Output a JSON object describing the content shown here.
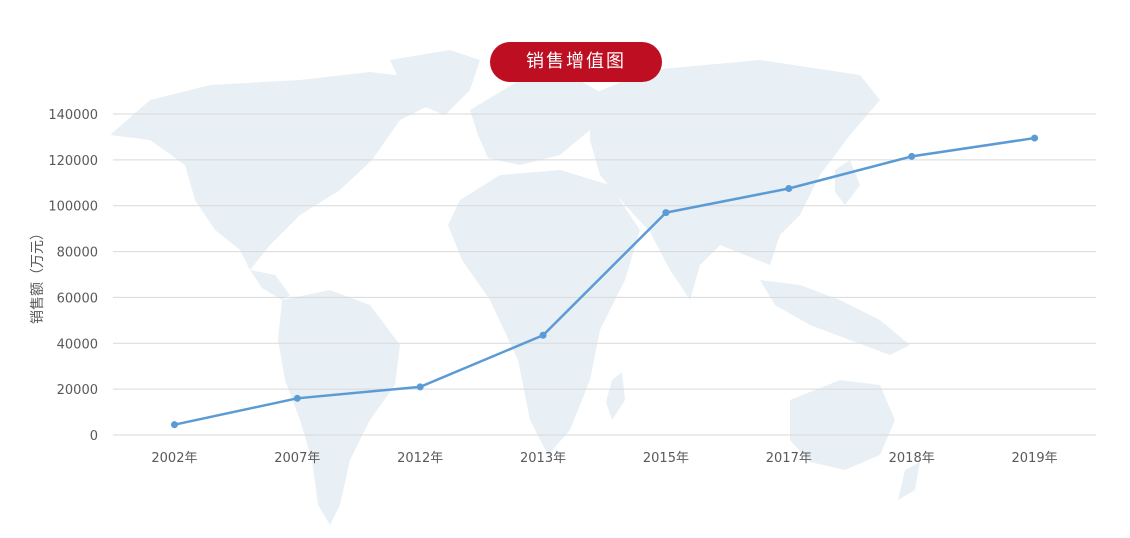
{
  "title": "销售增值图",
  "colors": {
    "accent": "#be0f22",
    "line": "#5b9bd5",
    "grid": "#d9d9d9",
    "map": "#e8f0f5",
    "text": "#595959"
  },
  "chart_data": {
    "type": "line",
    "title": "销售增值图",
    "xlabel": "",
    "ylabel": "销售额（万元）",
    "categories": [
      "2002年",
      "2007年",
      "2012年",
      "2013年",
      "2015年",
      "2017年",
      "2018年",
      "2019年"
    ],
    "series": [
      {
        "values": [
          4500,
          16000,
          21000,
          43500,
          97000,
          107500,
          121500,
          129500
        ]
      }
    ],
    "ylim": [
      0,
      140000
    ],
    "yticks": [
      0,
      20000,
      40000,
      60000,
      80000,
      100000,
      120000,
      140000
    ],
    "grid": true,
    "legend": "none",
    "background_icon": "world-map"
  }
}
